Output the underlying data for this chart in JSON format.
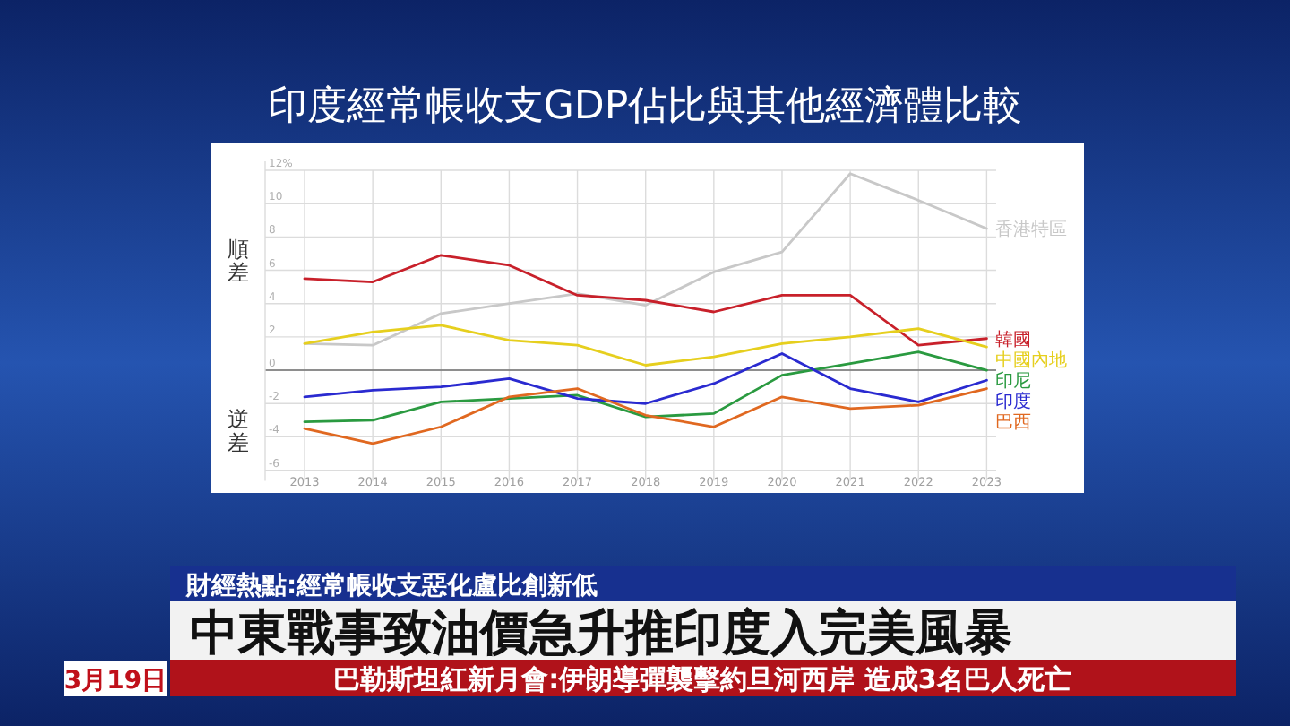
{
  "chart_data": {
    "type": "line",
    "title": "印度經常帳收支GDP佔比與其他經濟體比較",
    "x": [
      2013,
      2014,
      2015,
      2016,
      2017,
      2018,
      2019,
      2020,
      2021,
      2022,
      2023
    ],
    "series": [
      {
        "name": "香港特區",
        "color": "#c8c8c8",
        "values": [
          1.6,
          1.5,
          3.4,
          4.0,
          4.6,
          3.9,
          5.9,
          7.1,
          11.8,
          10.2,
          8.5
        ]
      },
      {
        "name": "韓國",
        "color": "#c8202a",
        "values": [
          5.5,
          5.3,
          6.9,
          6.3,
          4.5,
          4.2,
          3.5,
          4.5,
          4.5,
          1.5,
          1.9
        ]
      },
      {
        "name": "中國內地",
        "color": "#e6cf1e",
        "values": [
          1.6,
          2.3,
          2.7,
          1.8,
          1.5,
          0.3,
          0.8,
          1.6,
          2.0,
          2.5,
          1.4
        ]
      },
      {
        "name": "印尼",
        "color": "#2a9a40",
        "values": [
          -3.1,
          -3.0,
          -1.9,
          -1.7,
          -1.5,
          -2.8,
          -2.6,
          -0.3,
          0.4,
          1.1,
          0.0
        ]
      },
      {
        "name": "印度",
        "color": "#2a2ad0",
        "values": [
          -1.6,
          -1.2,
          -1.0,
          -0.5,
          -1.7,
          -2.0,
          -0.8,
          1.0,
          -1.1,
          -1.9,
          -0.6
        ]
      },
      {
        "name": "巴西",
        "color": "#e06820",
        "values": [
          -3.5,
          -4.4,
          -3.4,
          -1.6,
          -1.1,
          -2.7,
          -3.4,
          -1.6,
          -2.3,
          -2.1,
          -1.1
        ]
      }
    ],
    "xlim": [
      2013,
      2023
    ],
    "xticks": [
      2013,
      2014,
      2015,
      2016,
      2017,
      2018,
      2019,
      2020,
      2021,
      2022,
      2023
    ],
    "ylim": [
      -6,
      12
    ],
    "yticks": [
      -6,
      -4,
      -2,
      0,
      2,
      4,
      6,
      8,
      10,
      {
        "value": 12,
        "label": "12%"
      }
    ],
    "grid": true,
    "marker": "none",
    "line_style": "solid",
    "annotations": [
      "順差",
      "逆差",
      "財經熱點:經常帳收支惡化盧比創新低",
      "中東戰事致油價急升推印度入完美風暴",
      "巴勒斯坦紅新月會:伊朗導彈襲擊約旦河西岸 造成3名巴人死亡",
      "3月19日"
    ]
  }
}
